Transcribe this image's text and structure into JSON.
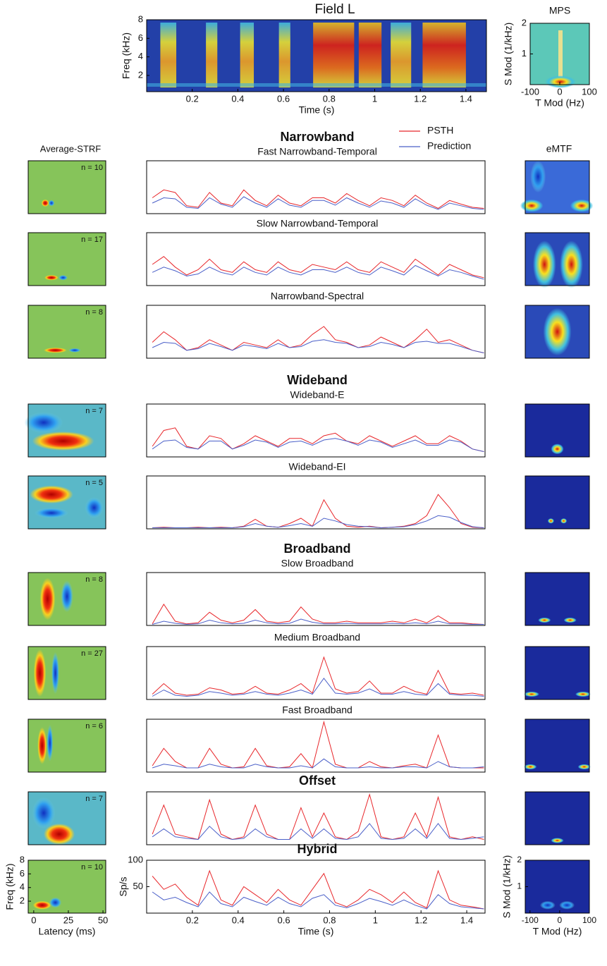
{
  "spectrogram": {
    "title": "Field L",
    "ylabel": "Freq (kHz)",
    "xlabel": "Time (s)",
    "ylim": [
      0.25,
      8
    ],
    "yticks": [
      2,
      4,
      6,
      8
    ],
    "xlim": [
      0,
      1.49
    ],
    "xticks": [
      0.2,
      0.4,
      0.6,
      0.8,
      1.0,
      1.2,
      1.4
    ]
  },
  "mps": {
    "title": "MPS",
    "ylabel": "S Mod (1/kHz)",
    "xlabel": "T Mod (Hz)",
    "ylim": [
      0,
      2
    ],
    "yticks": [
      1,
      2
    ],
    "xlim": [
      -100,
      100
    ],
    "xticks": [
      -100,
      0,
      100
    ]
  },
  "columns": {
    "strf": "Average-STRF",
    "emtf": "eMTF"
  },
  "strf_axes": {
    "xlabel": "Latency (ms)",
    "ylabel": "Freq (kHz)",
    "xlim": [
      -4,
      52
    ],
    "xticks": [
      0,
      25,
      50
    ],
    "ylim": [
      0.25,
      8
    ],
    "yticks": [
      2,
      4,
      6,
      8
    ]
  },
  "emtf_axes": {
    "xlabel": "T Mod (Hz)",
    "ylabel": "S Mod (1/kHz)",
    "xlim": [
      -116,
      100
    ],
    "xticks": [
      -100,
      0,
      100
    ],
    "ylim": [
      0,
      2
    ],
    "yticks": [
      1,
      2
    ]
  },
  "chart_data": {
    "type": "line",
    "xlabel": "Time (s)",
    "ylabel": "Sp/s",
    "xlim": [
      0,
      1.48
    ],
    "xticks": [
      0.2,
      0.4,
      0.6,
      0.8,
      1.0,
      1.2,
      1.4
    ],
    "ylim": [
      0,
      100
    ],
    "yticks": [
      50,
      100
    ],
    "legend": [
      {
        "name": "PSTH",
        "color": "#e8262a"
      },
      {
        "name": "Prediction",
        "color": "#4a5fc8"
      }
    ],
    "x": [
      0.025,
      0.075,
      0.125,
      0.175,
      0.225,
      0.275,
      0.325,
      0.375,
      0.425,
      0.475,
      0.525,
      0.575,
      0.625,
      0.675,
      0.725,
      0.775,
      0.825,
      0.875,
      0.925,
      0.975,
      1.025,
      1.075,
      1.125,
      1.175,
      1.225,
      1.275,
      1.325,
      1.375,
      1.425,
      1.475
    ],
    "panels": [
      {
        "group": "Narrowband",
        "title": "Fast Narrowband-Temporal",
        "strf_label": "n = 10",
        "values": [
          [
            30,
            45,
            40,
            15,
            12,
            40,
            20,
            15,
            45,
            25,
            15,
            35,
            20,
            15,
            30,
            30,
            20,
            38,
            25,
            15,
            30,
            25,
            15,
            35,
            20,
            10,
            25,
            18,
            12,
            10
          ],
          [
            20,
            30,
            28,
            12,
            10,
            30,
            18,
            12,
            32,
            20,
            12,
            28,
            16,
            12,
            25,
            25,
            16,
            30,
            20,
            12,
            24,
            20,
            12,
            28,
            16,
            8,
            20,
            15,
            10,
            8
          ]
        ]
      },
      {
        "title": "Slow Narrowband-Temporal",
        "strf_label": "n = 17",
        "values": [
          [
            40,
            55,
            35,
            20,
            30,
            50,
            30,
            25,
            45,
            30,
            25,
            45,
            30,
            25,
            40,
            35,
            30,
            45,
            30,
            25,
            45,
            35,
            25,
            50,
            35,
            20,
            40,
            30,
            20,
            15
          ],
          [
            25,
            35,
            28,
            18,
            22,
            35,
            25,
            20,
            35,
            25,
            20,
            35,
            25,
            20,
            30,
            30,
            25,
            35,
            25,
            20,
            35,
            28,
            20,
            38,
            28,
            18,
            30,
            25,
            18,
            12
          ]
        ]
      },
      {
        "title": "Narrowband-Spectral",
        "strf_label": "n = 8",
        "values": [
          [
            30,
            50,
            35,
            15,
            20,
            35,
            25,
            15,
            30,
            25,
            20,
            35,
            20,
            25,
            45,
            60,
            35,
            30,
            20,
            25,
            40,
            30,
            20,
            35,
            55,
            30,
            35,
            25,
            15,
            10
          ],
          [
            20,
            30,
            28,
            15,
            18,
            28,
            22,
            15,
            25,
            22,
            18,
            28,
            20,
            22,
            32,
            35,
            30,
            28,
            20,
            22,
            30,
            26,
            20,
            30,
            32,
            28,
            28,
            22,
            15,
            10
          ]
        ]
      },
      {
        "group": "Wideband",
        "title": "Wideband-E",
        "strf_label": "n = 7",
        "values": [
          [
            20,
            50,
            55,
            20,
            15,
            40,
            35,
            15,
            25,
            40,
            30,
            20,
            35,
            35,
            25,
            40,
            45,
            30,
            25,
            40,
            30,
            20,
            30,
            40,
            25,
            25,
            40,
            30,
            15,
            10
          ],
          [
            15,
            30,
            32,
            18,
            15,
            30,
            30,
            15,
            22,
            32,
            28,
            18,
            28,
            30,
            22,
            32,
            35,
            30,
            22,
            32,
            28,
            18,
            25,
            32,
            22,
            22,
            32,
            28,
            15,
            10
          ]
        ]
      },
      {
        "title": "Wideband-EI",
        "strf_label": "n = 5",
        "values": [
          [
            2,
            3,
            2,
            2,
            3,
            2,
            3,
            2,
            5,
            18,
            5,
            3,
            10,
            20,
            5,
            55,
            20,
            5,
            3,
            5,
            2,
            3,
            5,
            10,
            25,
            65,
            40,
            10,
            3,
            2
          ],
          [
            2,
            2,
            2,
            2,
            2,
            2,
            2,
            2,
            4,
            10,
            5,
            3,
            6,
            10,
            5,
            20,
            15,
            8,
            5,
            4,
            2,
            3,
            4,
            8,
            15,
            25,
            22,
            12,
            4,
            2
          ]
        ]
      },
      {
        "group": "Broadband",
        "title": "Slow Broadband",
        "strf_label": "n = 8",
        "values": [
          [
            3,
            40,
            8,
            3,
            5,
            25,
            10,
            5,
            10,
            30,
            8,
            5,
            8,
            35,
            12,
            5,
            5,
            8,
            5,
            5,
            5,
            8,
            5,
            12,
            5,
            18,
            5,
            5,
            3,
            2
          ],
          [
            2,
            8,
            4,
            2,
            3,
            10,
            5,
            3,
            4,
            10,
            5,
            3,
            4,
            12,
            6,
            3,
            3,
            4,
            3,
            3,
            3,
            4,
            3,
            5,
            3,
            8,
            3,
            3,
            2,
            2
          ]
        ]
      },
      {
        "title": "Medium Broadband",
        "strf_label": "n = 27",
        "values": [
          [
            10,
            30,
            12,
            8,
            10,
            22,
            18,
            10,
            12,
            25,
            12,
            10,
            18,
            30,
            12,
            80,
            20,
            12,
            15,
            35,
            12,
            12,
            25,
            15,
            10,
            55,
            12,
            10,
            12,
            8
          ],
          [
            6,
            18,
            8,
            6,
            8,
            15,
            12,
            8,
            10,
            15,
            10,
            8,
            12,
            18,
            10,
            40,
            12,
            10,
            12,
            20,
            10,
            10,
            15,
            10,
            8,
            30,
            10,
            8,
            8,
            6
          ]
        ]
      },
      {
        "title": "Fast Broadband",
        "strf_label": "n = 6",
        "values": [
          [
            12,
            45,
            20,
            8,
            8,
            45,
            15,
            8,
            10,
            45,
            12,
            8,
            10,
            35,
            8,
            95,
            15,
            8,
            8,
            20,
            10,
            8,
            12,
            15,
            8,
            70,
            10,
            8,
            8,
            8
          ],
          [
            8,
            15,
            12,
            8,
            8,
            15,
            10,
            8,
            8,
            15,
            10,
            8,
            8,
            12,
            8,
            25,
            10,
            8,
            8,
            10,
            8,
            8,
            10,
            10,
            8,
            20,
            10,
            8,
            8,
            10
          ]
        ]
      },
      {
        "group": "Offset",
        "strf_label": "n = 7",
        "values": [
          [
            20,
            75,
            20,
            15,
            10,
            85,
            20,
            10,
            15,
            75,
            20,
            10,
            10,
            70,
            15,
            60,
            15,
            10,
            25,
            95,
            15,
            10,
            15,
            60,
            15,
            90,
            15,
            10,
            15,
            10
          ],
          [
            15,
            30,
            15,
            12,
            10,
            35,
            15,
            10,
            12,
            30,
            15,
            10,
            10,
            30,
            12,
            30,
            12,
            10,
            15,
            40,
            12,
            10,
            12,
            30,
            12,
            40,
            12,
            10,
            12,
            15
          ]
        ]
      },
      {
        "group": "Hybrid",
        "strf_label": "n = 10",
        "values": [
          [
            70,
            45,
            55,
            30,
            15,
            80,
            25,
            15,
            50,
            35,
            20,
            45,
            25,
            15,
            45,
            75,
            20,
            12,
            25,
            45,
            35,
            20,
            40,
            20,
            10,
            80,
            25,
            15,
            12,
            8
          ],
          [
            40,
            25,
            30,
            20,
            12,
            40,
            18,
            12,
            30,
            22,
            15,
            30,
            18,
            12,
            28,
            35,
            15,
            10,
            18,
            28,
            22,
            15,
            25,
            15,
            8,
            35,
            18,
            12,
            10,
            8
          ]
        ]
      }
    ]
  }
}
